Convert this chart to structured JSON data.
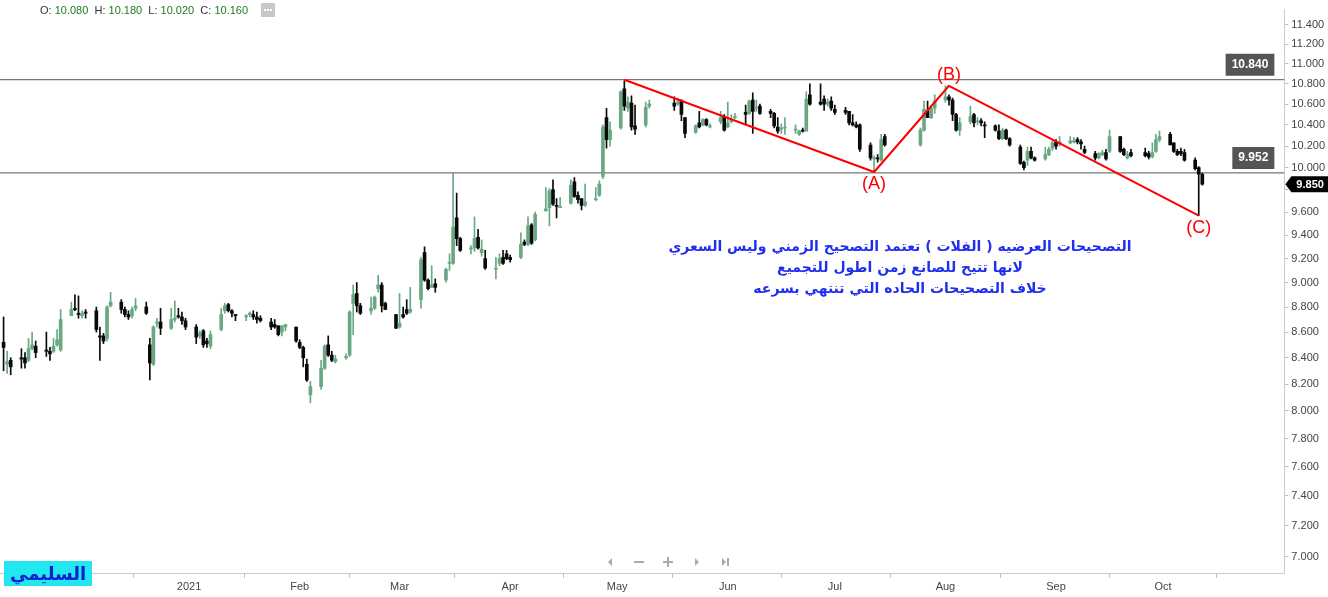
{
  "chart_data": {
    "type": "candlestick",
    "subtitle": "O: 10.080  H: 10.180  L: 10.020  C: 10.160",
    "log": true,
    "marker": "none",
    "x": [
      "2020-11-10",
      "2020-11-11",
      "2020-11-12",
      "2020-11-15",
      "2020-11-16",
      "2020-11-17",
      "2020-11-18",
      "2020-11-19",
      "2020-11-22",
      "2020-11-23",
      "2020-11-24",
      "2020-11-25",
      "2020-11-26",
      "2020-11-29",
      "2020-11-30",
      "2020-12-01",
      "2020-12-02",
      "2020-12-03",
      "2020-12-06",
      "2020-12-07",
      "2020-12-08",
      "2020-12-09",
      "2020-12-10",
      "2020-12-13",
      "2020-12-14",
      "2020-12-15",
      "2020-12-16",
      "2020-12-17",
      "2020-12-20",
      "2020-12-21",
      "2020-12-22",
      "2020-12-23",
      "2020-12-24",
      "2020-12-27",
      "2020-12-28",
      "2020-12-29",
      "2020-12-30",
      "2020-12-31",
      "2021-01-03",
      "2021-01-04",
      "2021-01-05",
      "2021-01-06",
      "2021-01-07",
      "2021-01-10",
      "2021-01-11",
      "2021-01-12",
      "2021-01-13",
      "2021-01-14",
      "2021-01-17",
      "2021-01-18",
      "2021-01-19",
      "2021-01-20",
      "2021-01-21",
      "2021-01-24",
      "2021-01-25",
      "2021-01-26",
      "2021-01-27",
      "2021-01-28",
      "2021-01-31",
      "2021-02-01",
      "2021-02-02",
      "2021-02-03",
      "2021-02-04",
      "2021-02-07",
      "2021-02-08",
      "2021-02-09",
      "2021-02-10",
      "2021-02-11",
      "2021-02-14",
      "2021-02-15",
      "2021-02-16",
      "2021-02-17",
      "2021-02-18",
      "2021-02-21",
      "2021-02-22",
      "2021-02-23",
      "2021-02-24",
      "2021-02-25",
      "2021-02-28",
      "2021-03-01",
      "2021-03-02",
      "2021-03-03",
      "2021-03-04",
      "2021-03-07",
      "2021-03-08",
      "2021-03-09",
      "2021-03-10",
      "2021-03-11",
      "2021-03-14",
      "2021-03-15",
      "2021-03-16",
      "2021-03-17",
      "2021-03-18",
      "2021-03-21",
      "2021-03-22",
      "2021-03-23",
      "2021-03-24",
      "2021-03-25",
      "2021-03-28",
      "2021-03-29",
      "2021-03-30",
      "2021-03-31",
      "2021-04-01",
      "2021-04-04",
      "2021-04-05",
      "2021-04-06",
      "2021-04-07",
      "2021-04-08",
      "2021-04-11",
      "2021-04-12",
      "2021-04-13",
      "2021-04-14",
      "2021-04-15",
      "2021-04-18",
      "2021-04-19",
      "2021-04-20",
      "2021-04-21",
      "2021-04-22",
      "2021-04-25",
      "2021-04-26",
      "2021-04-27",
      "2021-04-28",
      "2021-04-29",
      "2021-05-02",
      "2021-05-03",
      "2021-05-04",
      "2021-05-05",
      "2021-05-06",
      "2021-05-09",
      "2021-05-10",
      "2021-05-17",
      "2021-05-18",
      "2021-05-19",
      "2021-05-20",
      "2021-05-23",
      "2021-05-24",
      "2021-05-25",
      "2021-05-26",
      "2021-05-27",
      "2021-05-30",
      "2021-05-31",
      "2021-06-01",
      "2021-06-02",
      "2021-06-03",
      "2021-06-06",
      "2021-06-07",
      "2021-06-08",
      "2021-06-09",
      "2021-06-10",
      "2021-06-13",
      "2021-06-14",
      "2021-06-15",
      "2021-06-16",
      "2021-06-17",
      "2021-06-20",
      "2021-06-21",
      "2021-06-22",
      "2021-06-23",
      "2021-06-24",
      "2021-06-27",
      "2021-06-28",
      "2021-06-29",
      "2021-06-30",
      "2021-07-01",
      "2021-07-04",
      "2021-07-05",
      "2021-07-06",
      "2021-07-07",
      "2021-07-08",
      "2021-07-11",
      "2021-07-12",
      "2021-07-13",
      "2021-07-14",
      "2021-07-15",
      "2021-07-25",
      "2021-07-26",
      "2021-07-27",
      "2021-07-28",
      "2021-07-29",
      "2021-08-01",
      "2021-08-02",
      "2021-08-03",
      "2021-08-04",
      "2021-08-05",
      "2021-08-08",
      "2021-08-09",
      "2021-08-10",
      "2021-08-11",
      "2021-08-12",
      "2021-08-15",
      "2021-08-16",
      "2021-08-17",
      "2021-08-18",
      "2021-08-19",
      "2021-08-22",
      "2021-08-23",
      "2021-08-24",
      "2021-08-25",
      "2021-08-26",
      "2021-08-29",
      "2021-08-30",
      "2021-08-31",
      "2021-09-01",
      "2021-09-02",
      "2021-09-05",
      "2021-09-06",
      "2021-09-07",
      "2021-09-08",
      "2021-09-09",
      "2021-09-12",
      "2021-09-13",
      "2021-09-14",
      "2021-09-15",
      "2021-09-16",
      "2021-09-19",
      "2021-09-20",
      "2021-09-21",
      "2021-09-22",
      "2021-09-26",
      "2021-09-27",
      "2021-09-28",
      "2021-09-29",
      "2021-09-30",
      "2021-10-03",
      "2021-10-04",
      "2021-10-05",
      "2021-10-06",
      "2021-10-07",
      "2021-10-10",
      "2021-10-11",
      "2021-10-12"
    ],
    "ohlc": [
      [
        8.52,
        8.72,
        8.3,
        8.48
      ],
      [
        8.35,
        8.45,
        8.28,
        8.37
      ],
      [
        8.38,
        8.4,
        8.27,
        8.33
      ],
      [
        8.4,
        8.47,
        8.32,
        8.39
      ],
      [
        8.4,
        8.44,
        8.32,
        8.36
      ],
      [
        8.38,
        8.55,
        8.37,
        8.47
      ],
      [
        8.47,
        8.6,
        8.46,
        8.5
      ],
      [
        8.49,
        8.53,
        8.4,
        8.44
      ],
      [
        8.46,
        8.6,
        8.41,
        8.45
      ],
      [
        8.45,
        8.48,
        8.38,
        8.43
      ],
      [
        8.45,
        8.55,
        8.44,
        8.49
      ],
      [
        8.5,
        8.62,
        8.49,
        8.54
      ],
      [
        8.46,
        8.78,
        8.45,
        8.7
      ],
      [
        8.73,
        8.84,
        8.73,
        8.78
      ],
      [
        8.79,
        8.9,
        8.77,
        8.78
      ],
      [
        8.75,
        8.89,
        8.71,
        8.74
      ],
      [
        8.73,
        8.77,
        8.71,
        8.75
      ],
      [
        8.76,
        8.78,
        8.71,
        8.75
      ],
      [
        8.77,
        8.8,
        8.6,
        8.62
      ],
      [
        8.57,
        8.64,
        8.38,
        8.56
      ],
      [
        8.57,
        8.59,
        8.51,
        8.53
      ],
      [
        8.55,
        8.81,
        8.53,
        8.8
      ],
      [
        8.81,
        8.92,
        8.8,
        8.84
      ],
      [
        8.84,
        8.86,
        8.75,
        8.78
      ],
      [
        8.78,
        8.8,
        8.72,
        8.74
      ],
      [
        8.74,
        8.77,
        8.7,
        8.72
      ],
      [
        8.73,
        8.8,
        8.71,
        8.78
      ],
      [
        8.79,
        8.87,
        8.77,
        8.81
      ],
      [
        8.8,
        8.84,
        8.74,
        8.75
      ],
      [
        8.5,
        8.55,
        8.23,
        8.36
      ],
      [
        8.35,
        8.65,
        8.34,
        8.64
      ],
      [
        8.67,
        8.71,
        8.64,
        8.68
      ],
      [
        8.68,
        8.79,
        8.58,
        8.63
      ],
      [
        8.63,
        8.79,
        8.62,
        8.7
      ],
      [
        8.7,
        8.85,
        8.68,
        8.71
      ],
      [
        8.73,
        8.79,
        8.71,
        8.72
      ],
      [
        8.72,
        8.76,
        8.66,
        8.69
      ],
      [
        8.69,
        8.71,
        8.62,
        8.64
      ],
      [
        8.64,
        8.66,
        8.51,
        8.56
      ],
      [
        8.57,
        8.61,
        8.55,
        8.59
      ],
      [
        8.61,
        8.62,
        8.48,
        8.5
      ],
      [
        8.53,
        8.55,
        8.48,
        8.51
      ],
      [
        8.49,
        8.61,
        8.47,
        8.58
      ],
      [
        8.62,
        8.79,
        8.61,
        8.74
      ],
      [
        8.77,
        8.83,
        8.75,
        8.81
      ],
      [
        8.82,
        8.83,
        8.76,
        8.77
      ],
      [
        8.77,
        8.78,
        8.72,
        8.75
      ],
      [
        8.74,
        8.74,
        8.69,
        8.73
      ],
      [
        8.72,
        8.74,
        8.69,
        8.73
      ],
      [
        8.74,
        8.76,
        8.72,
        8.75
      ],
      [
        8.74,
        8.77,
        8.7,
        8.72
      ],
      [
        8.72,
        8.76,
        8.67,
        8.7
      ],
      [
        8.71,
        8.73,
        8.68,
        8.69
      ],
      [
        8.68,
        8.71,
        8.62,
        8.64
      ],
      [
        8.66,
        8.7,
        8.63,
        8.64
      ],
      [
        8.65,
        8.65,
        8.57,
        8.58
      ],
      [
        8.6,
        8.65,
        8.57,
        8.65
      ],
      [
        8.64,
        8.66,
        8.61,
        8.66
      ],
      [
        8.64,
        8.64,
        8.52,
        8.53
      ],
      [
        8.52,
        8.54,
        8.47,
        8.48
      ],
      [
        8.48,
        8.49,
        8.33,
        8.4
      ],
      [
        8.35,
        8.39,
        8.22,
        8.23
      ],
      [
        8.12,
        8.22,
        8.06,
        8.18
      ],
      [
        8.18,
        8.38,
        8.16,
        8.32
      ],
      [
        8.32,
        8.5,
        8.31,
        8.49
      ],
      [
        8.5,
        8.57,
        8.41,
        8.42
      ],
      [
        8.42,
        8.45,
        8.37,
        8.38
      ],
      [
        8.37,
        8.42,
        8.36,
        8.39
      ],
      [
        8.4,
        8.43,
        8.39,
        8.41
      ],
      [
        8.42,
        8.77,
        8.41,
        8.76
      ],
      [
        8.83,
        8.98,
        8.58,
        8.9
      ],
      [
        8.91,
        9.0,
        8.76,
        8.81
      ],
      [
        8.81,
        8.83,
        8.74,
        8.75
      ],
      [
        8.77,
        8.88,
        8.74,
        8.79
      ],
      [
        8.79,
        8.89,
        8.78,
        8.88
      ],
      [
        8.95,
        9.06,
        8.92,
        8.98
      ],
      [
        8.98,
        9.0,
        8.76,
        8.81
      ],
      [
        8.83,
        8.84,
        8.78,
        8.78
      ],
      [
        8.74,
        8.74,
        8.63,
        8.63
      ],
      [
        8.64,
        8.91,
        8.63,
        8.67
      ],
      [
        8.74,
        8.8,
        8.71,
        8.72
      ],
      [
        8.78,
        8.86,
        8.74,
        8.75
      ],
      [
        8.76,
        8.96,
        8.75,
        8.78
      ],
      [
        8.86,
        9.21,
        8.79,
        9.19
      ],
      [
        9.25,
        9.3,
        9.01,
        9.02
      ],
      [
        9.02,
        9.03,
        8.94,
        8.95
      ],
      [
        8.96,
        9.14,
        8.96,
        8.98
      ],
      [
        8.99,
        9.03,
        8.92,
        8.96
      ],
      [
        9.02,
        9.12,
        9.0,
        9.11
      ],
      [
        9.16,
        9.24,
        9.1,
        9.17
      ],
      [
        9.16,
        9.95,
        9.15,
        9.47
      ],
      [
        9.55,
        9.77,
        9.31,
        9.37
      ],
      [
        9.37,
        9.38,
        9.26,
        9.27
      ],
      [
        9.28,
        9.31,
        9.24,
        9.29
      ],
      [
        9.29,
        9.56,
        9.26,
        9.37
      ],
      [
        9.38,
        9.45,
        9.28,
        9.29
      ],
      [
        9.25,
        9.36,
        9.22,
        9.28
      ],
      [
        9.2,
        9.27,
        9.11,
        9.12
      ],
      [
        9.11,
        9.21,
        9.03,
        9.12
      ],
      [
        9.16,
        9.24,
        9.14,
        9.2
      ],
      [
        9.21,
        9.27,
        9.15,
        9.16
      ],
      [
        9.24,
        9.27,
        9.19,
        9.2
      ],
      [
        9.21,
        9.23,
        9.17,
        9.19
      ],
      [
        9.21,
        9.42,
        9.2,
        9.32
      ],
      [
        9.34,
        9.36,
        9.31,
        9.32
      ],
      [
        9.32,
        9.56,
        9.31,
        9.48
      ],
      [
        9.49,
        9.5,
        9.32,
        9.33
      ],
      [
        9.36,
        9.6,
        9.35,
        9.58
      ],
      [
        9.61,
        9.82,
        9.61,
        9.63
      ],
      [
        9.64,
        9.81,
        9.48,
        9.79
      ],
      [
        9.8,
        9.89,
        9.66,
        9.67
      ],
      [
        9.66,
        9.72,
        9.55,
        9.65
      ],
      [
        9.64,
        9.73,
        9.64,
        9.65
      ],
      [
        9.68,
        9.89,
        9.67,
        9.84
      ],
      [
        9.87,
        9.91,
        9.73,
        9.74
      ],
      [
        9.75,
        9.78,
        9.68,
        9.71
      ],
      [
        9.72,
        9.72,
        9.62,
        9.66
      ],
      [
        9.66,
        9.85,
        9.65,
        9.69
      ],
      [
        9.71,
        9.82,
        9.7,
        9.72
      ],
      [
        9.75,
        9.88,
        9.74,
        9.85
      ],
      [
        9.92,
        10.4,
        9.9,
        10.38
      ],
      [
        10.47,
        10.56,
        10.18,
        10.26
      ],
      [
        10.26,
        10.43,
        10.2,
        10.35
      ],
      [
        10.37,
        10.73,
        10.36,
        10.72
      ],
      [
        10.75,
        10.83,
        10.54,
        10.58
      ],
      [
        10.56,
        10.67,
        10.53,
        10.62
      ],
      [
        10.61,
        10.68,
        10.35,
        10.38
      ],
      [
        10.39,
        10.59,
        10.31,
        10.36
      ],
      [
        10.4,
        10.62,
        10.38,
        10.57
      ],
      [
        10.58,
        10.64,
        10.56,
        10.6
      ],
      [
        10.61,
        10.67,
        10.54,
        10.58
      ],
      [
        10.6,
        10.66,
        10.59,
        10.62
      ],
      [
        10.64,
        10.64,
        10.44,
        10.5
      ],
      [
        10.47,
        10.47,
        10.28,
        10.32
      ],
      [
        10.33,
        10.4,
        10.32,
        10.39
      ],
      [
        10.42,
        10.53,
        10.37,
        10.38
      ],
      [
        10.4,
        10.46,
        10.39,
        10.45
      ],
      [
        10.45,
        10.46,
        10.39,
        10.4
      ],
      [
        10.38,
        10.41,
        10.37,
        10.39
      ],
      [
        10.43,
        10.53,
        10.41,
        10.47
      ],
      [
        10.48,
        10.5,
        10.34,
        10.35
      ],
      [
        10.38,
        10.62,
        10.37,
        10.42
      ],
      [
        10.43,
        10.5,
        10.42,
        10.45
      ],
      [
        10.47,
        10.51,
        10.46,
        10.48
      ],
      [
        10.52,
        10.59,
        10.4,
        10.5
      ],
      [
        10.51,
        10.64,
        10.5,
        10.63
      ],
      [
        10.64,
        10.71,
        10.32,
        10.53
      ],
      [
        10.56,
        10.64,
        10.53,
        10.57
      ],
      [
        10.58,
        10.6,
        10.5,
        10.51
      ],
      [
        10.53,
        10.55,
        10.47,
        10.51
      ],
      [
        10.51,
        10.52,
        10.37,
        10.39
      ],
      [
        10.38,
        10.47,
        10.32,
        10.34
      ],
      [
        10.36,
        10.41,
        10.32,
        10.37
      ],
      [
        10.37,
        10.47,
        10.31,
        10.38
      ],
      [
        10.35,
        10.4,
        10.32,
        10.36
      ],
      [
        10.31,
        10.35,
        10.3,
        10.34
      ],
      [
        10.35,
        10.37,
        10.33,
        10.34
      ],
      [
        10.34,
        10.72,
        10.34,
        10.65
      ],
      [
        10.69,
        10.8,
        10.59,
        10.6
      ],
      [
        10.62,
        10.8,
        10.59,
        10.6
      ],
      [
        10.65,
        10.68,
        10.54,
        10.6
      ],
      [
        10.6,
        10.65,
        10.58,
        10.62
      ],
      [
        10.63,
        10.67,
        10.54,
        10.56
      ],
      [
        10.55,
        10.59,
        10.5,
        10.52
      ],
      [
        10.54,
        10.57,
        10.5,
        10.52
      ],
      [
        10.53,
        10.53,
        10.4,
        10.42
      ],
      [
        10.42,
        10.5,
        10.39,
        10.4
      ],
      [
        10.4,
        10.43,
        10.37,
        10.38
      ],
      [
        10.4,
        10.41,
        10.15,
        10.17
      ],
      [
        10.21,
        10.23,
        10.07,
        10.09
      ],
      [
        10.08,
        10.11,
        9.97,
        10.09
      ],
      [
        10.09,
        10.12,
        10.05,
        10.08
      ],
      [
        10.07,
        10.31,
        10.06,
        10.26
      ],
      [
        10.29,
        10.31,
        10.2,
        10.21
      ],
      [
        10.21,
        10.37,
        10.2,
        10.35
      ],
      [
        10.35,
        10.63,
        10.34,
        10.55
      ],
      [
        10.53,
        10.63,
        10.47,
        10.47
      ],
      [
        10.47,
        10.58,
        10.46,
        10.56
      ],
      [
        10.56,
        10.69,
        10.51,
        10.63
      ],
      [
        10.64,
        10.78,
        10.62,
        10.67
      ],
      [
        10.67,
        10.69,
        10.59,
        10.64
      ],
      [
        10.64,
        10.66,
        10.44,
        10.5
      ],
      [
        10.5,
        10.51,
        10.34,
        10.35
      ],
      [
        10.35,
        10.47,
        10.3,
        10.42
      ],
      [
        10.43,
        10.58,
        10.41,
        10.48
      ],
      [
        10.5,
        10.51,
        10.38,
        10.42
      ],
      [
        10.43,
        10.47,
        10.4,
        10.44
      ],
      [
        10.44,
        10.46,
        10.39,
        10.42
      ],
      [
        10.4,
        10.43,
        10.28,
        10.39
      ],
      [
        10.39,
        10.4,
        10.34,
        10.35
      ],
      [
        10.34,
        10.4,
        10.26,
        10.27
      ],
      [
        10.27,
        10.37,
        10.26,
        10.35
      ],
      [
        10.35,
        10.36,
        10.26,
        10.27
      ],
      [
        10.27,
        10.28,
        10.2,
        10.21
      ],
      [
        10.19,
        10.21,
        10.03,
        10.04
      ],
      [
        10.05,
        10.06,
        9.98,
        10.0
      ],
      [
        10.07,
        10.19,
        10.02,
        10.15
      ],
      [
        10.15,
        10.19,
        10.08,
        10.09
      ],
      [
        10.09,
        10.1,
        10.06,
        10.07
      ],
      [
        10.08,
        10.19,
        10.07,
        10.12
      ],
      [
        10.12,
        10.19,
        10.11,
        10.17
      ],
      [
        10.18,
        10.25,
        10.16,
        10.23
      ],
      [
        10.24,
        10.26,
        10.17,
        10.2
      ],
      [
        10.22,
        10.29,
        10.2,
        10.24
      ],
      [
        10.23,
        10.29,
        10.22,
        10.25
      ],
      [
        10.24,
        10.28,
        10.23,
        10.25
      ],
      [
        10.26,
        10.28,
        10.22,
        10.24
      ],
      [
        10.24,
        10.26,
        10.17,
        10.22
      ],
      [
        10.17,
        10.2,
        10.13,
        10.14
      ],
      [
        10.13,
        10.15,
        10.07,
        10.09
      ],
      [
        10.09,
        10.14,
        10.08,
        10.13
      ],
      [
        10.12,
        10.16,
        10.11,
        10.14
      ],
      [
        10.14,
        10.17,
        10.07,
        10.08
      ],
      [
        10.15,
        10.35,
        10.14,
        10.29
      ],
      [
        10.29,
        10.29,
        10.14,
        10.15
      ],
      [
        10.17,
        10.18,
        10.11,
        10.12
      ],
      [
        10.09,
        10.15,
        10.08,
        10.12
      ],
      [
        10.14,
        10.17,
        10.1,
        10.11
      ],
      [
        10.14,
        10.18,
        10.1,
        10.11
      ],
      [
        10.13,
        10.15,
        10.08,
        10.1
      ],
      [
        10.1,
        10.23,
        10.09,
        10.14
      ],
      [
        10.15,
        10.31,
        10.14,
        10.26
      ],
      [
        10.26,
        10.34,
        10.24,
        10.29
      ],
      [
        10.31,
        10.33,
        10.21,
        10.21
      ],
      [
        10.23,
        10.23,
        10.14,
        10.15
      ],
      [
        10.15,
        10.17,
        10.11,
        10.12
      ],
      [
        10.15,
        10.18,
        10.11,
        10.13
      ],
      [
        10.14,
        10.17,
        10.06,
        10.07
      ],
      [
        10.07,
        10.09,
        9.98,
        9.99
      ],
      [
        10.0,
        10.01,
        9.57,
        9.94
      ],
      [
        9.94,
        9.95,
        9.84,
        9.85
      ]
    ],
    "colors": [
      "#0a0a0a",
      "#6aa883",
      "#0a0a0a",
      "#0a0a0a",
      "#0a0a0a",
      "#6aa883",
      "#6aa883",
      "#0a0a0a",
      "#0a0a0a",
      "#0a0a0a",
      "#6aa883",
      "#6aa883",
      "#6aa883",
      "#6aa883",
      "#0a0a0a",
      "#0a0a0a",
      "#6aa883",
      "#0a0a0a",
      "#0a0a0a",
      "#0a0a0a",
      "#0a0a0a",
      "#6aa883",
      "#6aa883",
      "#0a0a0a",
      "#0a0a0a",
      "#0a0a0a",
      "#6aa883",
      "#6aa883",
      "#0a0a0a",
      "#0a0a0a",
      "#6aa883",
      "#6aa883",
      "#0a0a0a",
      "#6aa883",
      "#6aa883",
      "#0a0a0a",
      "#0a0a0a",
      "#0a0a0a",
      "#0a0a0a",
      "#6aa883",
      "#0a0a0a",
      "#0a0a0a",
      "#6aa883",
      "#6aa883",
      "#6aa883",
      "#0a0a0a",
      "#0a0a0a",
      "#0a0a0a",
      "#6aa883",
      "#6aa883",
      "#0a0a0a",
      "#0a0a0a",
      "#0a0a0a",
      "#0a0a0a",
      "#0a0a0a",
      "#0a0a0a",
      "#6aa883",
      "#6aa883",
      "#0a0a0a",
      "#0a0a0a",
      "#0a0a0a",
      "#0a0a0a",
      "#6aa883",
      "#6aa883",
      "#6aa883",
      "#0a0a0a",
      "#0a0a0a",
      "#6aa883",
      "#6aa883",
      "#6aa883",
      "#6aa883",
      "#0a0a0a",
      "#0a0a0a",
      "#6aa883",
      "#6aa883",
      "#6aa883",
      "#0a0a0a",
      "#0a0a0a",
      "#0a0a0a",
      "#6aa883",
      "#0a0a0a",
      "#0a0a0a",
      "#6aa883",
      "#6aa883",
      "#0a0a0a",
      "#0a0a0a",
      "#6aa883",
      "#0a0a0a",
      "#6aa883",
      "#6aa883",
      "#6aa883",
      "#0a0a0a",
      "#0a0a0a",
      "#6aa883",
      "#6aa883",
      "#0a0a0a",
      "#6aa883",
      "#0a0a0a",
      "#6aa883",
      "#6aa883",
      "#0a0a0a",
      "#0a0a0a",
      "#0a0a0a",
      "#6aa883",
      "#0a0a0a",
      "#6aa883",
      "#0a0a0a",
      "#6aa883",
      "#6aa883",
      "#6aa883",
      "#0a0a0a",
      "#0a0a0a",
      "#6aa883",
      "#6aa883",
      "#0a0a0a",
      "#0a0a0a",
      "#0a0a0a",
      "#6aa883",
      "#6aa883",
      "#6aa883",
      "#6aa883",
      "#0a0a0a",
      "#6aa883",
      "#6aa883",
      "#0a0a0a",
      "#6aa883",
      "#0a0a0a",
      "#0a0a0a",
      "#6aa883",
      "#6aa883",
      "#0a0a0a",
      "#6aa883",
      "#0a0a0a",
      "#0a0a0a",
      "#6aa883",
      "#0a0a0a",
      "#6aa883",
      "#0a0a0a",
      "#6aa883",
      "#6aa883",
      "#0a0a0a",
      "#6aa883",
      "#6aa883",
      "#6aa883",
      "#0a0a0a",
      "#6aa883",
      "#0a0a0a",
      "#6aa883",
      "#0a0a0a",
      "#0a0a0a",
      "#0a0a0a",
      "#0a0a0a",
      "#6aa883",
      "#6aa883",
      "#6aa883",
      "#6aa883",
      "#0a0a0a",
      "#6aa883",
      "#0a0a0a",
      "#0a0a0a",
      "#0a0a0a",
      "#6aa883",
      "#0a0a0a",
      "#0a0a0a",
      "#0a0a0a",
      "#0a0a0a",
      "#0a0a0a",
      "#0a0a0a",
      "#0a0a0a",
      "#0a0a0a",
      "#6aa883",
      "#0a0a0a",
      "#6aa883",
      "#0a0a0a",
      "#6aa883",
      "#6aa883",
      "#0a0a0a",
      "#6aa883",
      "#6aa883",
      "#6aa883",
      "#0a0a0a",
      "#0a0a0a",
      "#0a0a0a",
      "#6aa883",
      "#6aa883",
      "#0a0a0a",
      "#6aa883",
      "#0a0a0a",
      "#0a0a0a",
      "#0a0a0a",
      "#0a0a0a",
      "#6aa883",
      "#0a0a0a",
      "#0a0a0a",
      "#0a0a0a",
      "#0a0a0a",
      "#6aa883",
      "#0a0a0a",
      "#0a0a0a",
      "#6aa883",
      "#6aa883",
      "#6aa883",
      "#0a0a0a",
      "#6aa883",
      "#6aa883",
      "#6aa883",
      "#0a0a0a",
      "#0a0a0a",
      "#0a0a0a",
      "#0a0a0a",
      "#6aa883",
      "#6aa883",
      "#0a0a0a",
      "#6aa883",
      "#0a0a0a",
      "#0a0a0a",
      "#6aa883",
      "#0a0a0a",
      "#0a0a0a",
      "#0a0a0a",
      "#6aa883",
      "#6aa883",
      "#6aa883",
      "#0a0a0a",
      "#0a0a0a",
      "#0a0a0a",
      "#0a0a0a",
      "#0a0a0a",
      "#0a0a0a",
      "#0a0a0a",
      "#0a0a0a"
    ],
    "series": [
      {
        "type": "line",
        "color": "#ff0000",
        "x": [
          "2021-05-03",
          "2021-07-12",
          "2021-08-02",
          "2021-10-11"
        ],
        "values": [
          10.84,
          9.96,
          10.78,
          9.57
        ]
      }
    ],
    "ylim": [
      6.89,
      11.56
    ],
    "xlim": [
      "2020-11-09",
      "2021-11-04"
    ],
    "yticks": [
      {
        "value": 7,
        "label": "7.000"
      },
      {
        "value": 7.2,
        "label": "7.200"
      },
      {
        "value": 7.4,
        "label": "7.400"
      },
      {
        "value": 7.6,
        "label": "7.600"
      },
      {
        "value": 7.8,
        "label": "7.800"
      },
      {
        "value": 8,
        "label": "8.000"
      },
      {
        "value": 8.2,
        "label": "8.200"
      },
      {
        "value": 8.4,
        "label": "8.400"
      },
      {
        "value": 8.6,
        "label": "8.600"
      },
      {
        "value": 8.8,
        "label": "8.800"
      },
      {
        "value": 9,
        "label": "9.000"
      },
      {
        "value": 9.2,
        "label": "9.200"
      },
      {
        "value": 9.4,
        "label": "9.400"
      },
      {
        "value": 9.6,
        "label": "9.600"
      },
      {
        "value": 9.8,
        "label": null
      },
      {
        "value": 10,
        "label": "10.000"
      },
      {
        "value": 10.2,
        "label": "10.200"
      },
      {
        "value": 10.4,
        "label": "10.400"
      },
      {
        "value": 10.6,
        "label": "10.600"
      },
      {
        "value": 10.8,
        "label": "10.800"
      },
      {
        "value": 11,
        "label": "11.000"
      },
      {
        "value": 11.2,
        "label": "11.200"
      },
      {
        "value": 11.4,
        "label": "11.400"
      }
    ],
    "xticks": [
      {
        "value": "2021-01",
        "label": "2021"
      },
      {
        "value": "2021-02",
        "label": "Feb"
      },
      {
        "value": "2021-03",
        "label": "Mar"
      },
      {
        "value": "2021-04",
        "label": "Apr"
      },
      {
        "value": "2021-05",
        "label": "May"
      },
      {
        "value": "2021-06",
        "label": "Jun"
      },
      {
        "value": "2021-07",
        "label": "Jul"
      },
      {
        "value": "2021-08",
        "label": "Aug"
      },
      {
        "value": "2021-09",
        "label": "Sep"
      },
      {
        "value": "2021-10",
        "label": "Oct"
      }
    ],
    "ref_lines": [
      {
        "axis": "y",
        "value": 10.84,
        "label": "10.840",
        "color": "#555555"
      },
      {
        "axis": "y",
        "value": 9.952,
        "label": "9.952",
        "color": "#555555"
      }
    ],
    "annotations": [
      "التصحيحات العرضيه ( الفلات ) تعتمد التصحيح الزمني وليس السعري",
      "لانها تتيح للصانع زمن اطول للتجميع",
      "خلاف التصحيحات الحاده التي تنتهي بسرعه",
      "السليمي",
      {
        "text": "(A)",
        "x": "2021-07-12",
        "y": 9.96
      },
      {
        "text": "(B)",
        "x": "2021-08-02",
        "y": 10.78
      },
      {
        "text": "(C)",
        "x": "2021-10-11",
        "y": 9.57
      },
      "9.850"
    ]
  }
}
